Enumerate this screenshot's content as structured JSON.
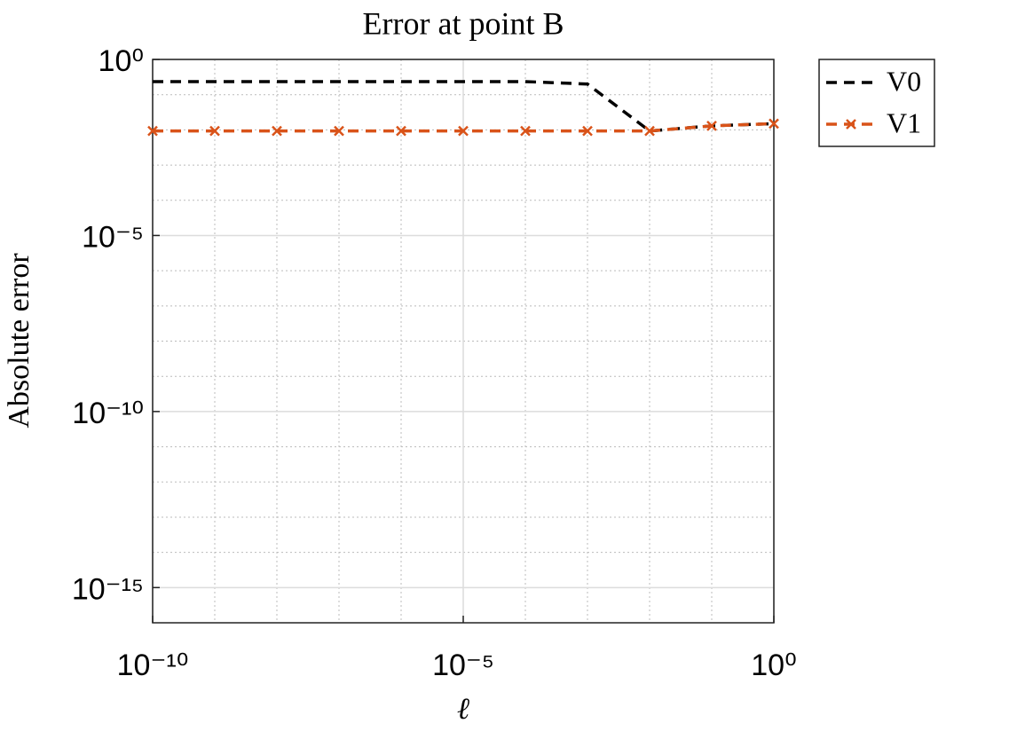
{
  "chart_data": {
    "type": "line",
    "title": "Error at point B",
    "x_label": "ℓ",
    "y_label": "Absolute error",
    "x": [
      1e-10,
      1e-09,
      1e-08,
      1e-07,
      1e-06,
      1e-05,
      0.0001,
      0.001,
      0.01,
      0.1,
      1
    ],
    "series": [
      {
        "name": "V0",
        "color": "#000000",
        "line_style": "dashed",
        "marker": null,
        "values": [
          0.235,
          0.235,
          0.235,
          0.235,
          0.235,
          0.235,
          0.235,
          0.2,
          0.0093,
          0.013,
          0.015
        ]
      },
      {
        "name": "V1",
        "color": "#d95319",
        "line_style": "dashed",
        "marker": "x",
        "values": [
          0.0093,
          0.0093,
          0.0093,
          0.0093,
          0.0093,
          0.0093,
          0.0093,
          0.0093,
          0.0093,
          0.013,
          0.015
        ]
      }
    ],
    "xscale": "log",
    "yscale": "log",
    "xlim": [
      1e-10,
      1
    ],
    "ylim": [
      1e-16,
      1
    ],
    "xticks": [
      {
        "value": 1e-10,
        "label": "10⁻¹⁰"
      },
      {
        "value": 1e-05,
        "label": "10⁻⁵"
      },
      {
        "value": 1,
        "label": "10⁰"
      }
    ],
    "yticks": [
      {
        "value": 1e-15,
        "label": "10⁻¹⁵"
      },
      {
        "value": 1e-10,
        "label": "10⁻¹⁰"
      },
      {
        "value": 1e-05,
        "label": "10⁻⁵"
      },
      {
        "value": 1,
        "label": "10⁰"
      }
    ],
    "xminorticks": [
      1e-09,
      1e-08,
      1e-07,
      1e-06,
      0.0001,
      0.001,
      0.01,
      0.1
    ],
    "yminorticks": [
      1e-14,
      1e-13,
      1e-12,
      1e-11,
      1e-09,
      1e-08,
      1e-07,
      1e-06,
      0.0001,
      0.001,
      0.01,
      0.1
    ],
    "grid": true,
    "minor_grid": true,
    "legend": "northeastoutside"
  }
}
